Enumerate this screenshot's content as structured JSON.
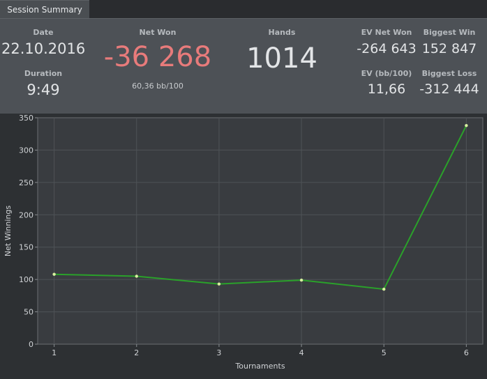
{
  "tab": {
    "label": "Session Summary"
  },
  "summary": {
    "date_label": "Date",
    "date_value": "22.10.2016",
    "duration_label": "Duration",
    "duration_value": "9:49",
    "net_won_label": "Net Won",
    "net_won_value": "-36 268",
    "net_won_sub": "60,36 bb/100",
    "hands_label": "Hands",
    "hands_value": "1014",
    "ev_net_won_label": "EV Net Won",
    "ev_net_won_value": "-264 643",
    "ev_bb_label": "EV (bb/100)",
    "ev_bb_value": "11,66",
    "biggest_win_label": "Biggest Win",
    "biggest_win_value": "152 847",
    "biggest_loss_label": "Biggest Loss",
    "biggest_loss_value": "-312 444"
  },
  "colors": {
    "net_won": "#e87b7b",
    "line": "#2aa12a",
    "point": "#d8f0a0"
  },
  "chart_data": {
    "type": "line",
    "xlabel": "Tournaments",
    "ylabel": "Net Winnings",
    "x": [
      1,
      2,
      3,
      4,
      5,
      6
    ],
    "series": [
      {
        "values": [
          108,
          105,
          93,
          99,
          85,
          338
        ]
      }
    ],
    "xlim": [
      0.8,
      6.2
    ],
    "ylim": [
      0,
      350
    ],
    "yticks": [
      0,
      50,
      100,
      150,
      200,
      250,
      300,
      350
    ],
    "xticks": [
      1,
      2,
      3,
      4,
      5,
      6
    ],
    "grid": true
  }
}
